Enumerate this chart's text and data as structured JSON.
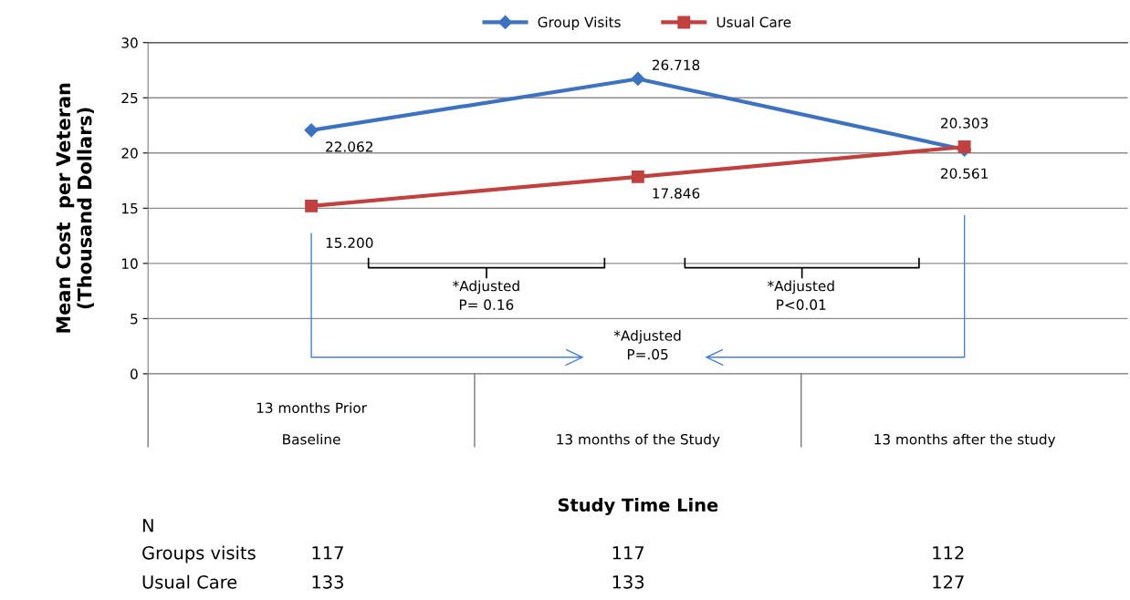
{
  "chart_data": {
    "type": "line",
    "xlabel": "Study Time Line",
    "ylabel": "Mean Cost  per Veteran\n(Thousand Dollars)",
    "categories": [
      "13 months Prior\nBaseline",
      "13 months of the Study",
      "13 months after the study"
    ],
    "series": [
      {
        "name": "Group Visits",
        "color": "#3d72c0",
        "marker": "diamond",
        "values": [
          22.062,
          26.718,
          20.303
        ],
        "value_labels": [
          "22.062",
          "26.718",
          "20.303"
        ]
      },
      {
        "name": "Usual Care",
        "color": "#c0413f",
        "marker": "square",
        "values": [
          15.2,
          17.846,
          20.561
        ],
        "value_labels": [
          "15.200",
          "17.846",
          "20.561"
        ]
      }
    ],
    "ylim": [
      0,
      30
    ],
    "yticks": [
      0,
      5,
      10,
      15,
      20,
      25,
      30
    ],
    "grid": "y",
    "legend": "top",
    "line_style": "solid",
    "annotations": [
      "*Adjusted\nP= 0.16",
      "*Adjusted\nP<0.01",
      "*Adjusted\nP=.05",
      "N",
      "Groups visits",
      "117",
      "117",
      "112",
      "Usual Care",
      "133",
      "133",
      "127"
    ]
  }
}
